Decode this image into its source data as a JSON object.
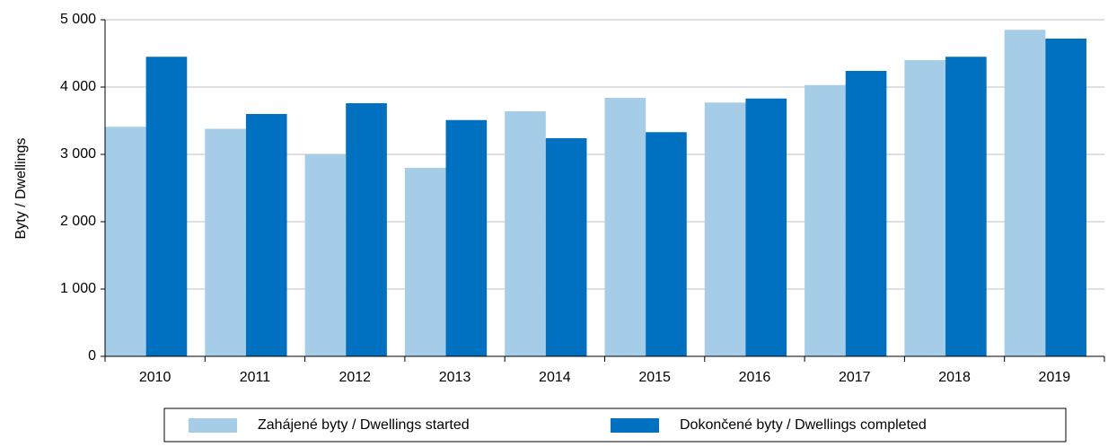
{
  "chart_data": {
    "type": "bar",
    "y_label": "Byty / Dwellings",
    "categories": [
      "2010",
      "2011",
      "2012",
      "2013",
      "2014",
      "2015",
      "2016",
      "2017",
      "2018",
      "2019"
    ],
    "series": [
      {
        "name": "Zahájené byty / Dwellings started",
        "color": "#a6cde8",
        "values": [
          3410,
          3380,
          3000,
          2800,
          3640,
          3840,
          3770,
          4030,
          4400,
          4850
        ]
      },
      {
        "name": "Dokončené byty / Dwellings completed",
        "color": "#0070c0",
        "values": [
          4450,
          3600,
          3760,
          3510,
          3240,
          3330,
          3830,
          4240,
          4450,
          4720
        ]
      }
    ],
    "ylim": [
      0,
      5000
    ],
    "yticks": [
      {
        "value": 0,
        "label": "0"
      },
      {
        "value": 1000,
        "label": "1 000"
      },
      {
        "value": 2000,
        "label": "2 000"
      },
      {
        "value": 3000,
        "label": "3 000"
      },
      {
        "value": 4000,
        "label": "4 000"
      },
      {
        "value": 5000,
        "label": "5 000"
      }
    ],
    "grid": true,
    "legend": "bottom"
  }
}
